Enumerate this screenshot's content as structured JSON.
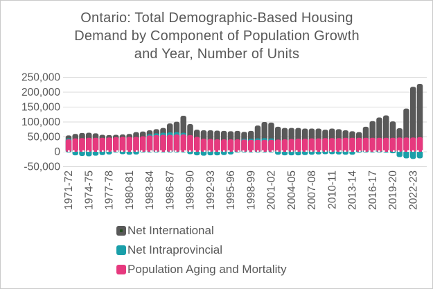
{
  "title": "Ontario: Total Demographic-Based Housing Demand by Component of Population Growth and Year, Number of Units",
  "title_lines": [
    "Ontario: Total Demographic-Based Housing",
    "Demand by Component of Population Growth",
    "and Year, Number of Units"
  ],
  "colors": {
    "text": "#595959",
    "gridline": "#d9d9d9",
    "frame_border": "#c9c9c9",
    "background": "#ffffff",
    "zero_line_dash": "#ffffff"
  },
  "chart_data": {
    "type": "bar",
    "stacked": true,
    "title": "Ontario: Total Demographic-Based Housing Demand by Component of Population Growth and Year, Number of Units",
    "xlabel": "",
    "ylabel": "Number of Units",
    "ylim": [
      -50000,
      250000
    ],
    "grid": "horizontal",
    "legend_position": "bottom-left",
    "x": [
      "1971-72",
      "1972-73",
      "1973-74",
      "1974-75",
      "1975-76",
      "1976-77",
      "1977-78",
      "1978-79",
      "1979-80",
      "1980-81",
      "1981-82",
      "1982-83",
      "1983-84",
      "1984-85",
      "1985-86",
      "1986-87",
      "1987-88",
      "1988-89",
      "1989-90",
      "1990-91",
      "1991-92",
      "1992-93",
      "1993-94",
      "1994-95",
      "1995-96",
      "1996-97",
      "1997-98",
      "1998-99",
      "1999-00",
      "2000-01",
      "2001-02",
      "2002-03",
      "2003-04",
      "2004-05",
      "2005-06",
      "2006-07",
      "2007-08",
      "2008-09",
      "2009-10",
      "2010-11",
      "2011-12",
      "2012-13",
      "2013-14",
      "2014-15",
      "2015-16",
      "2016-17",
      "2017-18",
      "2018-19",
      "2019-20",
      "2020-21",
      "2021-22",
      "2022-23",
      "2023-24"
    ],
    "x_tick_every": 3,
    "x_ticks_shown": [
      "1971-72",
      "1974-75",
      "1977-78",
      "1980-81",
      "1983-84",
      "1986-87",
      "1989-90",
      "1992-93",
      "1995-96",
      "1998-99",
      "2001-02",
      "2004-05",
      "2007-08",
      "2010-11",
      "2013-14",
      "2016-17",
      "2019-20",
      "2022-23"
    ],
    "y_ticks": [
      {
        "label": "250,000",
        "value": 250000
      },
      {
        "label": "200,000",
        "value": 200000
      },
      {
        "label": "150,000",
        "value": 150000
      },
      {
        "label": "100,000",
        "value": 100000
      },
      {
        "label": "50,000",
        "value": 50000
      },
      {
        "label": "0",
        "value": 0
      },
      {
        "label": "-50,000",
        "value": -50000
      }
    ],
    "series": [
      {
        "name": "Net International",
        "color": "#595959",
        "marker_dot_color": "#25501f",
        "values": [
          10000,
          15000,
          17000,
          17000,
          15000,
          10000,
          8000,
          8000,
          8000,
          10000,
          16000,
          16000,
          13000,
          14000,
          16000,
          30000,
          35000,
          57000,
          37000,
          24000,
          28000,
          29000,
          29000,
          28000,
          27000,
          28000,
          23000,
          26000,
          43000,
          54000,
          53000,
          43000,
          38000,
          37000,
          36000,
          34000,
          33000,
          33000,
          28000,
          32000,
          30000,
          25000,
          22000,
          19000,
          37000,
          56000,
          68000,
          75000,
          55000,
          31000,
          97000,
          170000,
          179000
        ]
      },
      {
        "name": "Net Intraprovincial",
        "color": "#1a9fa9",
        "values": [
          3000,
          -12000,
          -14000,
          -15000,
          -13000,
          -11000,
          -9000,
          -2000,
          -8000,
          -10000,
          -9000,
          -2000,
          4000,
          6000,
          7000,
          8000,
          8000,
          6000,
          -8000,
          -12000,
          -13000,
          -12000,
          -12000,
          -11000,
          -9000,
          -2000,
          3000,
          4000,
          5000,
          6000,
          5000,
          -10000,
          -12000,
          -12000,
          -12000,
          -11000,
          -10000,
          -9000,
          -8000,
          -8000,
          -9000,
          -10000,
          -10000,
          -3000,
          -2000,
          -2000,
          -2000,
          -3000,
          -5000,
          -18000,
          -22000,
          -24000,
          -22000
        ]
      },
      {
        "name": "Population Aging and Mortality",
        "color": "#e6397e",
        "values": [
          42000,
          45000,
          46000,
          47000,
          47000,
          47000,
          48000,
          49000,
          50000,
          50000,
          50000,
          52000,
          55000,
          56000,
          57000,
          57000,
          58000,
          58000,
          56000,
          50000,
          44000,
          43000,
          42000,
          42000,
          42000,
          42000,
          41000,
          40000,
          40000,
          40000,
          40000,
          41000,
          42000,
          43000,
          44000,
          44000,
          45000,
          45000,
          46000,
          46000,
          46000,
          47000,
          47000,
          47000,
          47000,
          47000,
          47000,
          47000,
          47000,
          48000,
          48000,
          48000,
          49000
        ]
      }
    ]
  },
  "legend": {
    "items": [
      "Net International",
      "Net Intraprovincial",
      "Population Aging and Mortality"
    ]
  }
}
